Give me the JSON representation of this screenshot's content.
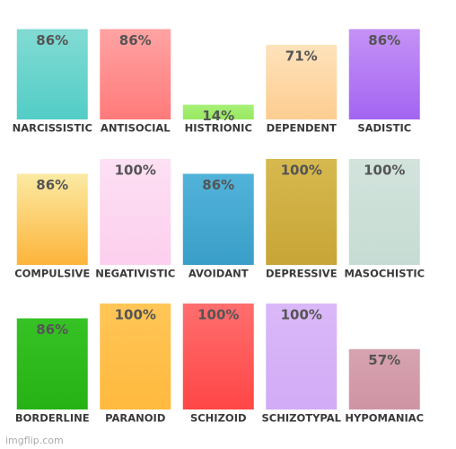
{
  "chart_data": [
    {
      "type": "bar",
      "categories": [
        "NARCISSISTIC",
        "ANTISOCIAL",
        "HISTRIONIC",
        "DEPENDENT",
        "SADISTIC"
      ],
      "values": [
        86,
        86,
        14,
        71,
        86
      ],
      "value_labels": [
        "86%",
        "86%",
        "14%",
        "71%",
        "86%"
      ],
      "colors": [
        [
          "#82dbd3",
          "#52cdc6"
        ],
        [
          "#ffa3a3",
          "#ff7a7a"
        ],
        [
          "#a8f078",
          "#98e860"
        ],
        [
          "#fee2bb",
          "#fdcd90"
        ],
        [
          "#c592f6",
          "#a365f1"
        ]
      ],
      "ylim": [
        0,
        100
      ]
    },
    {
      "type": "bar",
      "categories": [
        "COMPULSIVE",
        "NEGATIVISTIC",
        "AVOIDANT",
        "DEPRESSIVE",
        "MASOCHISTIC"
      ],
      "values": [
        86,
        100,
        86,
        100,
        100
      ],
      "value_labels": [
        "86%",
        "100%",
        "86%",
        "100%",
        "100%"
      ],
      "colors": [
        [
          "#fbeaa3",
          "#fdb43a"
        ],
        [
          "#fde0f3",
          "#fccfee"
        ],
        [
          "#52b3da",
          "#399ec8"
        ],
        [
          "#d6b94f",
          "#c8a536"
        ],
        [
          "#d2e3dc",
          "#c6dcd3"
        ]
      ],
      "ylim": [
        0,
        100
      ]
    },
    {
      "type": "bar",
      "categories": [
        "BORDERLINE",
        "PARANOID",
        "SCHIZOID",
        "SCHIZOTYPAL",
        "HYPOMANIAC"
      ],
      "values": [
        86,
        100,
        100,
        100,
        57
      ],
      "value_labels": [
        "86%",
        "100%",
        "100%",
        "100%",
        "57%"
      ],
      "colors": [
        [
          "#36c224",
          "#26b215"
        ],
        [
          "#ffc657",
          "#ffb93e"
        ],
        [
          "#ff6e6e",
          "#ff4646"
        ],
        [
          "#dab8f8",
          "#d2abf6"
        ],
        [
          "#d7a3b0",
          "#cf94a4"
        ]
      ],
      "ylim": [
        0,
        100
      ]
    }
  ],
  "watermark": "imgflip.com"
}
